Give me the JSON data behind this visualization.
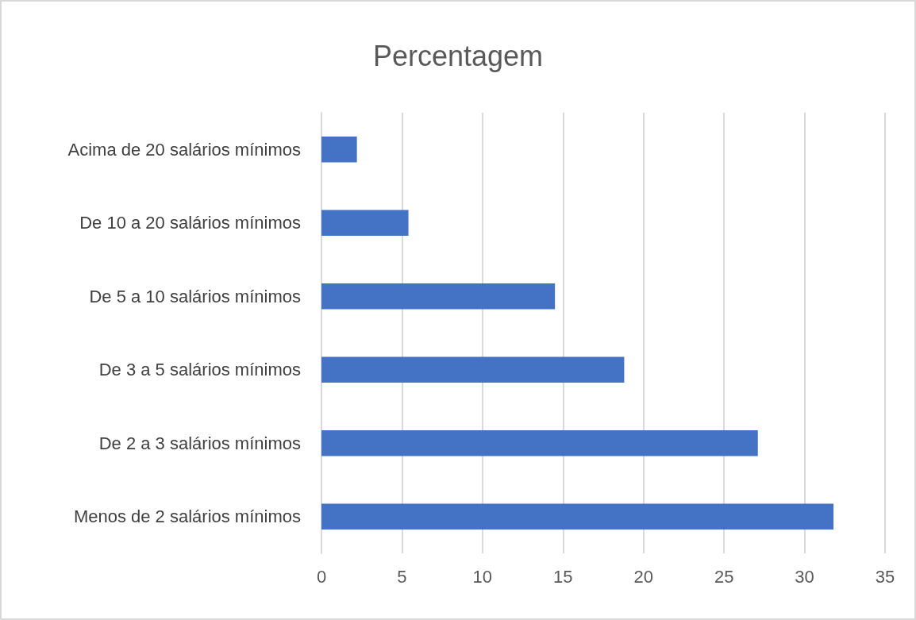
{
  "chart_data": {
    "type": "bar",
    "orientation": "horizontal",
    "title": "Percentagem",
    "categories": [
      "Acima de 20 salários mínimos",
      "De 10 a 20 salários mínimos",
      "De 5 a 10 salários mínimos",
      "De 3 a 5 salários mínimos",
      "De 2 a 3 salários mínimos",
      "Menos de 2 salários mínimos"
    ],
    "values": [
      2.2,
      5.4,
      14.5,
      18.8,
      27.1,
      31.8
    ],
    "color": "#4472c4",
    "xlim": [
      0,
      35
    ],
    "xticks": [
      0,
      5,
      10,
      15,
      20,
      25,
      30,
      35
    ],
    "grid": "x"
  }
}
